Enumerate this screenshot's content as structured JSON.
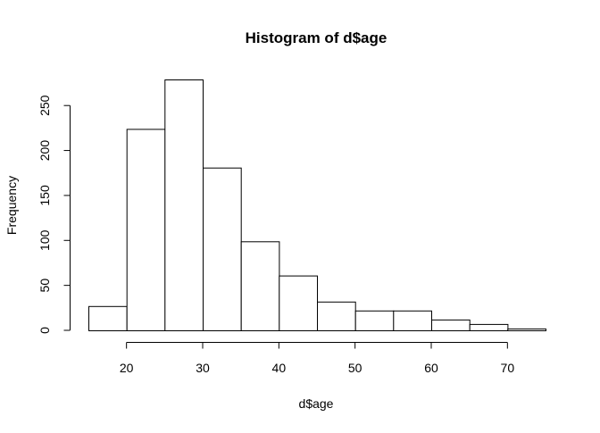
{
  "chart_data": {
    "type": "bar",
    "title": "Histogram of d$age",
    "xlabel": "d$age",
    "ylabel": "Frequency",
    "bins": [
      {
        "start": 15,
        "end": 20,
        "count": 27
      },
      {
        "start": 20,
        "end": 25,
        "count": 224
      },
      {
        "start": 25,
        "end": 30,
        "count": 279
      },
      {
        "start": 30,
        "end": 35,
        "count": 181
      },
      {
        "start": 35,
        "end": 40,
        "count": 99
      },
      {
        "start": 40,
        "end": 45,
        "count": 61
      },
      {
        "start": 45,
        "end": 50,
        "count": 32
      },
      {
        "start": 50,
        "end": 55,
        "count": 22
      },
      {
        "start": 55,
        "end": 60,
        "count": 22
      },
      {
        "start": 60,
        "end": 65,
        "count": 12
      },
      {
        "start": 65,
        "end": 70,
        "count": 7
      },
      {
        "start": 70,
        "end": 75,
        "count": 2
      }
    ],
    "xlim": [
      15,
      75
    ],
    "ylim": [
      0,
      279
    ],
    "x_ticks": [
      20,
      30,
      40,
      50,
      60,
      70
    ],
    "y_ticks": [
      0,
      50,
      100,
      150,
      200,
      250
    ],
    "x_tick_labels": [
      "20",
      "30",
      "40",
      "50",
      "60",
      "70"
    ],
    "y_tick_labels": [
      "0",
      "50",
      "100",
      "150",
      "200",
      "250"
    ],
    "grid": false,
    "legend": "none"
  }
}
